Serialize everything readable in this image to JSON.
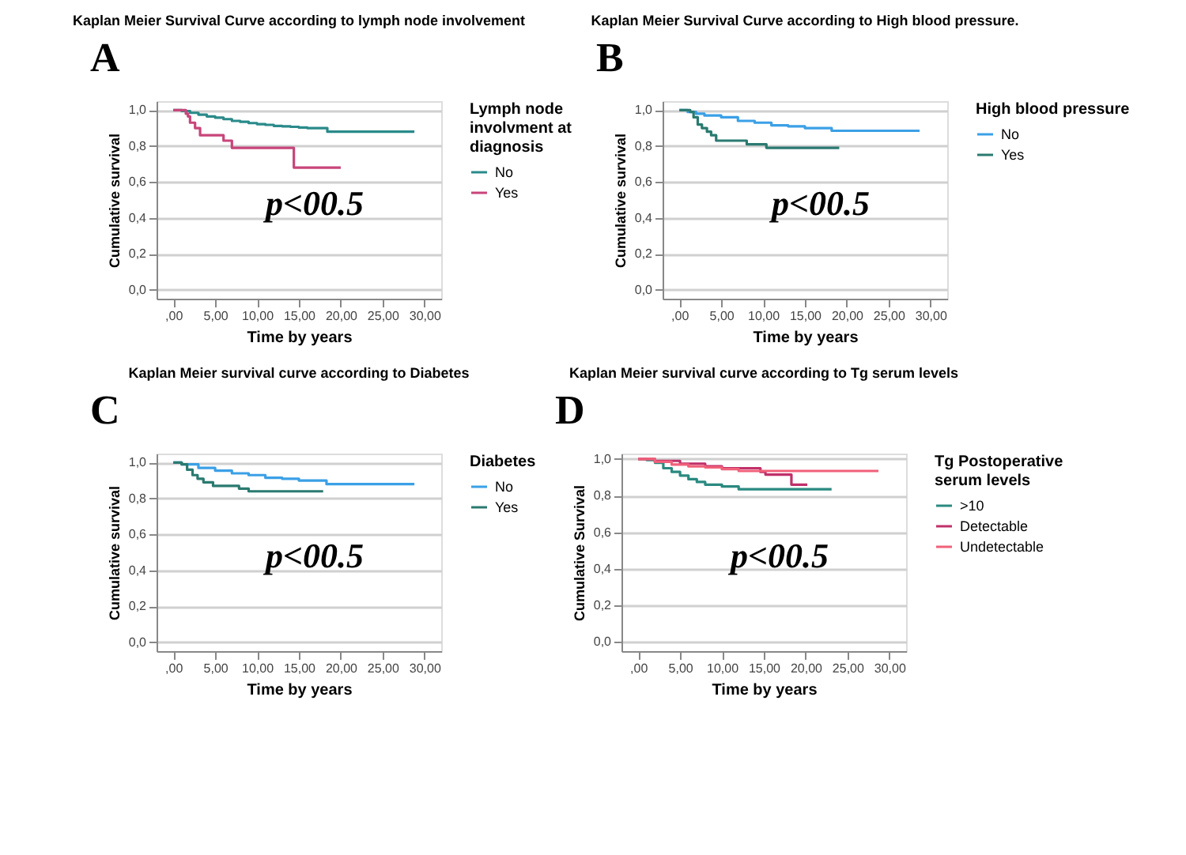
{
  "chart_data": [
    {
      "type": "step",
      "title": "Kaplan Meier Survival Curve according to lymph node involvement",
      "xlabel": "Time by years",
      "ylabel": "Cumulative survival",
      "legend_title": "Lymph node involvment at diagnosis",
      "legend": "right",
      "grid": "y",
      "line_style": "solid",
      "annotations": [
        "A",
        "p<00.5"
      ],
      "xlim": [
        -2,
        32
      ],
      "ylim": [
        -0.05,
        1.05
      ],
      "xticks": [
        {
          "value": 0,
          "label": ",00"
        },
        {
          "value": 5,
          "label": "5,00"
        },
        {
          "value": 10,
          "label": "10,00"
        },
        {
          "value": 15,
          "label": "15,00"
        },
        {
          "value": 20,
          "label": "20,00"
        },
        {
          "value": 25,
          "label": "25,00"
        },
        {
          "value": 30,
          "label": "30,00"
        }
      ],
      "yticks": [
        {
          "value": 0,
          "label": "0,0"
        },
        {
          "value": 0.2,
          "label": "0,2"
        },
        {
          "value": 0.4,
          "label": "0,4"
        },
        {
          "value": 0.6,
          "label": "0,6"
        },
        {
          "value": 0.8,
          "label": "0,8"
        },
        {
          "value": 1,
          "label": "1,0"
        }
      ],
      "series": [
        {
          "name": "No",
          "color": "#2a8a8a",
          "x": [
            0,
            1,
            2,
            3,
            4,
            5,
            6,
            7,
            8,
            9,
            10,
            11,
            12,
            13,
            14,
            15,
            16,
            18.4,
            28.8
          ],
          "values": [
            1,
            0.995,
            0.985,
            0.975,
            0.965,
            0.958,
            0.95,
            0.94,
            0.935,
            0.928,
            0.922,
            0.918,
            0.912,
            0.91,
            0.907,
            0.903,
            0.9,
            0.88,
            0.88
          ]
        },
        {
          "name": "Yes",
          "color": "#c8457a",
          "x": [
            0,
            1.5,
            1.75,
            2.0,
            2.6,
            3.2,
            6.0,
            7.0,
            14.4,
            20.0
          ],
          "values": [
            1,
            0.98,
            0.965,
            0.93,
            0.9,
            0.86,
            0.83,
            0.79,
            0.68,
            0.68
          ]
        }
      ]
    },
    {
      "type": "step",
      "title": "Kaplan Meier Survival Curve according to High blood pressure.",
      "xlabel": "Time by years",
      "ylabel": "Cumulative survival",
      "legend_title": "High blood pressure",
      "legend": "right",
      "grid": "y",
      "line_style": "solid",
      "annotations": [
        "B",
        "p<00.5"
      ],
      "xlim": [
        -2,
        32
      ],
      "ylim": [
        -0.05,
        1.05
      ],
      "xticks": [
        {
          "value": 0,
          "label": ",00"
        },
        {
          "value": 5,
          "label": "5,00"
        },
        {
          "value": 10,
          "label": "10,00"
        },
        {
          "value": 15,
          "label": "15,00"
        },
        {
          "value": 20,
          "label": "20,00"
        },
        {
          "value": 25,
          "label": "25,00"
        },
        {
          "value": 30,
          "label": "30,00"
        }
      ],
      "yticks": [
        {
          "value": 0,
          "label": "0,0"
        },
        {
          "value": 0.2,
          "label": "0,2"
        },
        {
          "value": 0.4,
          "label": "0,4"
        },
        {
          "value": 0.6,
          "label": "0,6"
        },
        {
          "value": 0.8,
          "label": "0,8"
        },
        {
          "value": 1,
          "label": "1,0"
        }
      ],
      "series": [
        {
          "name": "No",
          "color": "#3ba0e6",
          "x": [
            0,
            1,
            2,
            3,
            5,
            7,
            9,
            11,
            13,
            15,
            18.2,
            28.7
          ],
          "values": [
            1,
            0.99,
            0.98,
            0.97,
            0.96,
            0.94,
            0.93,
            0.915,
            0.91,
            0.9,
            0.885,
            0.885
          ]
        },
        {
          "name": "Yes",
          "color": "#2a7a70",
          "x": [
            0,
            1.3,
            1.7,
            2.2,
            2.7,
            3.3,
            3.8,
            4.4,
            8.05,
            10.4,
            19.1
          ],
          "values": [
            1,
            0.99,
            0.96,
            0.92,
            0.9,
            0.88,
            0.86,
            0.83,
            0.81,
            0.79,
            0.79
          ]
        }
      ]
    },
    {
      "type": "step",
      "title": "Kaplan Meier survival curve according to Diabetes",
      "xlabel": "Time by years",
      "ylabel": "Cumulative survival",
      "legend_title": "Diabetes",
      "legend": "right",
      "grid": "y",
      "line_style": "solid",
      "annotations": [
        "C",
        "p<00.5"
      ],
      "xlim": [
        -2,
        32
      ],
      "ylim": [
        -0.05,
        1.05
      ],
      "xticks": [
        {
          "value": 0,
          "label": ",00"
        },
        {
          "value": 5,
          "label": "5,00"
        },
        {
          "value": 10,
          "label": "10,00"
        },
        {
          "value": 15,
          "label": "15,00"
        },
        {
          "value": 20,
          "label": "20,00"
        },
        {
          "value": 25,
          "label": "25,00"
        },
        {
          "value": 30,
          "label": "30,00"
        }
      ],
      "yticks": [
        {
          "value": 0,
          "label": "0,0"
        },
        {
          "value": 0.2,
          "label": "0,2"
        },
        {
          "value": 0.4,
          "label": "0,4"
        },
        {
          "value": 0.6,
          "label": "0,6"
        },
        {
          "value": 0.8,
          "label": "0,8"
        },
        {
          "value": 1,
          "label": "1,0"
        }
      ],
      "series": [
        {
          "name": "No",
          "color": "#3ba0e6",
          "x": [
            0,
            1,
            3,
            5,
            7,
            9,
            11,
            13,
            15,
            18.3,
            28.8
          ],
          "values": [
            1,
            0.99,
            0.97,
            0.955,
            0.94,
            0.93,
            0.915,
            0.91,
            0.9,
            0.88,
            0.88
          ]
        },
        {
          "name": "Yes",
          "color": "#2a7a70",
          "x": [
            0,
            1.0,
            1.65,
            2.3,
            2.9,
            3.6,
            4.75,
            7.85,
            9.0,
            17.9
          ],
          "values": [
            1,
            0.99,
            0.96,
            0.93,
            0.91,
            0.89,
            0.87,
            0.855,
            0.84,
            0.84
          ]
        }
      ]
    },
    {
      "type": "step",
      "title": "Kaplan Meier survival curve according to Tg serum levels",
      "xlabel": "Time by years",
      "ylabel": "Cumulative Survival",
      "legend_title": "Tg Postoperative serum levels",
      "legend": "right",
      "grid": "y",
      "line_style": "solid",
      "annotations": [
        "D",
        "p<00.5"
      ],
      "xlim": [
        -2,
        32
      ],
      "ylim": [
        -0.05,
        1.03
      ],
      "xticks": [
        {
          "value": 0,
          "label": ",00"
        },
        {
          "value": 5,
          "label": "5,00"
        },
        {
          "value": 10,
          "label": "10,00"
        },
        {
          "value": 15,
          "label": "15,00"
        },
        {
          "value": 20,
          "label": "20,00"
        },
        {
          "value": 25,
          "label": "25,00"
        },
        {
          "value": 30,
          "label": "30,00"
        }
      ],
      "yticks": [
        {
          "value": 0,
          "label": "0,0"
        },
        {
          "value": 0.2,
          "label": "0,2"
        },
        {
          "value": 0.4,
          "label": "0,4"
        },
        {
          "value": 0.6,
          "label": "0,6"
        },
        {
          "value": 0.8,
          "label": "0,8"
        },
        {
          "value": 1,
          "label": "1,0"
        }
      ],
      "series": [
        {
          "name": ">10",
          "color": "#2a8a80",
          "x": [
            0,
            1,
            2,
            3,
            4,
            5,
            6,
            7,
            8,
            10,
            12,
            23.1
          ],
          "values": [
            1,
            0.995,
            0.98,
            0.95,
            0.93,
            0.91,
            0.89,
            0.875,
            0.86,
            0.85,
            0.835,
            0.835
          ]
        },
        {
          "name": "Detectable",
          "color": "#c0306a",
          "x": [
            0,
            2,
            5,
            8,
            10,
            14.6,
            15.2,
            18.3,
            20.2
          ],
          "values": [
            1,
            0.99,
            0.975,
            0.96,
            0.95,
            0.93,
            0.915,
            0.86,
            0.86
          ]
        },
        {
          "name": "Undetectable",
          "color": "#f0607a",
          "x": [
            0,
            2,
            4,
            6,
            8,
            10,
            12,
            28.7
          ],
          "values": [
            1,
            0.985,
            0.97,
            0.96,
            0.955,
            0.945,
            0.935,
            0.935
          ]
        }
      ]
    }
  ]
}
